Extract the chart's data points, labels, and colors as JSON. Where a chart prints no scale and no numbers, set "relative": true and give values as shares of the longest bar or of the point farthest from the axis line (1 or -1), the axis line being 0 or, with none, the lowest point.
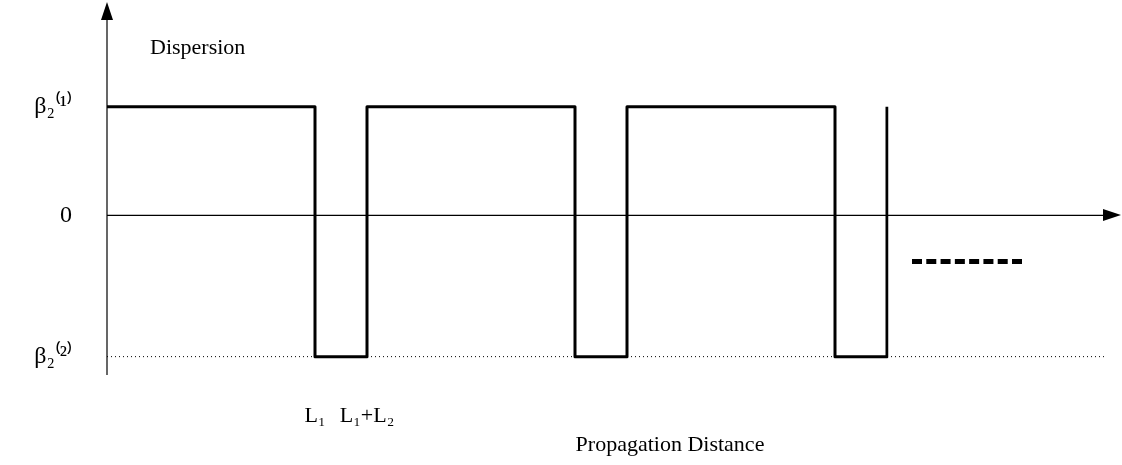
{
  "chart_data": {
    "type": "step",
    "xlabel": "Propagation Distance",
    "ylabel": "Dispersion",
    "relative": true,
    "categories": [
      null,
      null,
      null,
      null,
      "L₁",
      "L₁+L₂",
      null,
      null,
      null,
      null,
      null,
      null,
      null,
      null,
      null,
      null
    ],
    "series": [
      {
        "color": "#000000",
        "values": [
          0.77,
          0.77,
          0.77,
          0.77,
          -1,
          0.77,
          0.77,
          0.77,
          0.77,
          -1,
          0.77,
          0.77,
          0.77,
          0.77,
          -1,
          0.77
        ]
      }
    ],
    "annotations": [
      "β₂⁽¹⁾"
    ],
    "ref_lines": [
      {
        "axis": "y",
        "value": 0,
        "label": "0",
        "color": "#000000",
        "line_style": "solid"
      },
      {
        "axis": "y",
        "value": -1,
        "label": "β₂⁽²⁾",
        "color": "#000000",
        "line_style": "dotted"
      }
    ],
    "legend": false,
    "marker": "none",
    "line_style": "solid"
  }
}
